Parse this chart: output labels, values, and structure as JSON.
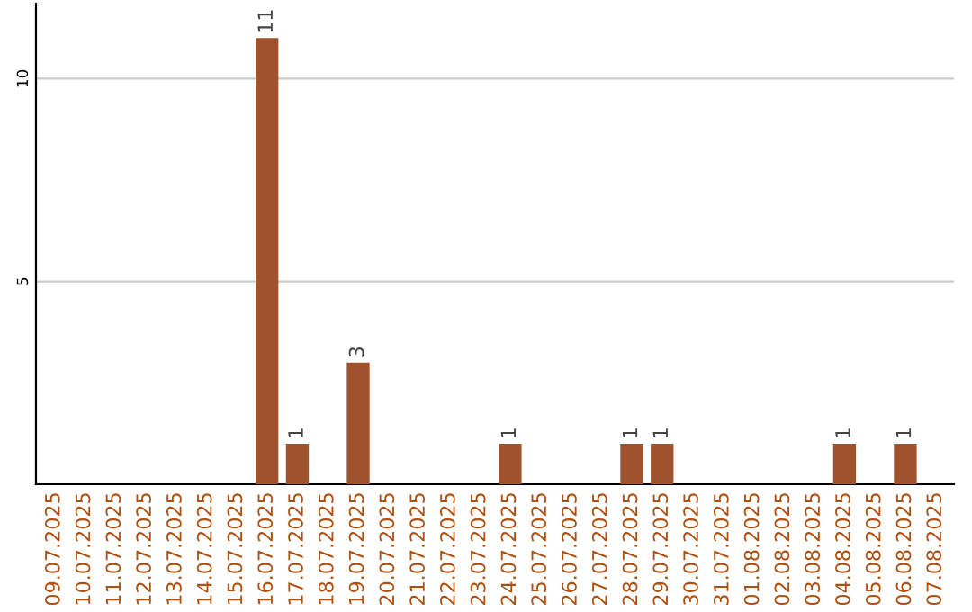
{
  "chart_data": {
    "type": "bar",
    "categories": [
      "09.07.2025",
      "10.07.2025",
      "11.07.2025",
      "12.07.2025",
      "13.07.2025",
      "14.07.2025",
      "15.07.2025",
      "16.07.2025",
      "17.07.2025",
      "18.07.2025",
      "19.07.2025",
      "20.07.2025",
      "21.07.2025",
      "22.07.2025",
      "23.07.2025",
      "24.07.2025",
      "25.07.2025",
      "26.07.2025",
      "27.07.2025",
      "28.07.2025",
      "29.07.2025",
      "30.07.2025",
      "31.07.2025",
      "01.08.2025",
      "02.08.2025",
      "03.08.2025",
      "04.08.2025",
      "05.08.2025",
      "06.08.2025",
      "07.08.2025"
    ],
    "values": [
      0,
      0,
      0,
      0,
      0,
      0,
      0,
      11,
      1,
      0,
      3,
      0,
      0,
      0,
      0,
      1,
      0,
      0,
      0,
      1,
      1,
      0,
      0,
      0,
      0,
      0,
      1,
      0,
      1,
      0
    ],
    "value_labels": [
      null,
      null,
      null,
      null,
      null,
      null,
      null,
      "11",
      "1",
      null,
      "3",
      null,
      null,
      null,
      null,
      "1",
      null,
      null,
      null,
      "1",
      "1",
      null,
      null,
      null,
      null,
      null,
      "1",
      null,
      "1",
      null
    ],
    "color": "#a0522d",
    "ylim": [
      0,
      11.85
    ],
    "yticks": [
      5,
      10
    ],
    "grid": "y"
  }
}
